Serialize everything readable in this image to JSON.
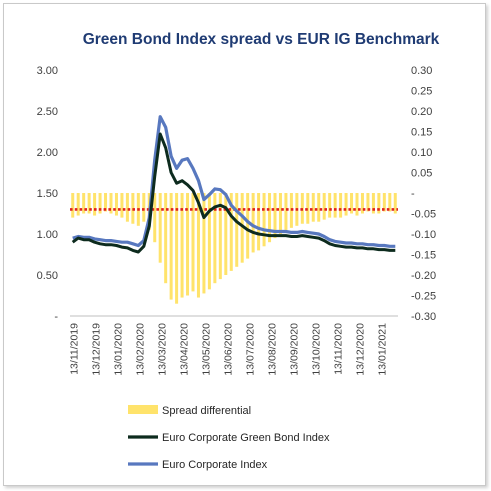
{
  "chart_data": {
    "type": "line",
    "title": "Green Bond Index spread vs EUR IG Benchmark",
    "y_left": {
      "lim": [
        0,
        3.0
      ],
      "ticks": [
        "-",
        "0.50",
        "1.00",
        "1.50",
        "2.00",
        "2.50",
        "3.00"
      ]
    },
    "y_right": {
      "lim": [
        -0.3,
        0.3
      ],
      "ticks": [
        "-0.30",
        "-0.25",
        "-0.20",
        "-0.15",
        "-0.10",
        "-0.05",
        "-",
        "0.05",
        "0.10",
        "0.15",
        "0.20",
        "0.25",
        "0.30"
      ]
    },
    "x_ticks": [
      "13/11/2019",
      "13/12/2019",
      "13/01/2020",
      "13/02/2020",
      "13/03/2020",
      "13/04/2020",
      "13/05/2020",
      "13/06/2020",
      "13/07/2020",
      "13/08/2020",
      "13/09/2020",
      "13/10/2020",
      "13/11/2020",
      "13/12/2020",
      "13/01/2021"
    ],
    "n_points": 60,
    "series": [
      {
        "name": "Spread differential",
        "kind": "bar",
        "axis": "right",
        "color": "#ffe36b",
        "values": [
          -0.06,
          -0.055,
          -0.05,
          -0.05,
          -0.055,
          -0.05,
          -0.045,
          -0.05,
          -0.055,
          -0.06,
          -0.07,
          -0.075,
          -0.08,
          -0.07,
          -0.09,
          -0.12,
          -0.17,
          -0.22,
          -0.26,
          -0.27,
          -0.255,
          -0.25,
          -0.24,
          -0.255,
          -0.245,
          -0.235,
          -0.22,
          -0.21,
          -0.2,
          -0.19,
          -0.18,
          -0.17,
          -0.16,
          -0.145,
          -0.14,
          -0.13,
          -0.12,
          -0.11,
          -0.1,
          -0.09,
          -0.085,
          -0.08,
          -0.075,
          -0.075,
          -0.07,
          -0.07,
          -0.065,
          -0.06,
          -0.06,
          -0.06,
          -0.055,
          -0.05,
          -0.055,
          -0.05,
          -0.045,
          -0.05,
          -0.05,
          -0.045,
          -0.045,
          -0.05
        ]
      },
      {
        "name": "Euro Corporate Green Bond Index",
        "kind": "line",
        "axis": "left",
        "color": "#0d2b1e",
        "values": [
          0.9,
          0.95,
          0.93,
          0.93,
          0.9,
          0.88,
          0.87,
          0.87,
          0.86,
          0.84,
          0.83,
          0.8,
          0.78,
          0.85,
          1.1,
          1.7,
          2.22,
          2.05,
          1.75,
          1.62,
          1.65,
          1.6,
          1.53,
          1.38,
          1.2,
          1.28,
          1.33,
          1.35,
          1.32,
          1.22,
          1.15,
          1.1,
          1.05,
          1.02,
          1.0,
          0.99,
          0.98,
          0.98,
          0.98,
          0.98,
          0.97,
          0.97,
          0.98,
          0.97,
          0.96,
          0.95,
          0.92,
          0.88,
          0.86,
          0.85,
          0.84,
          0.84,
          0.83,
          0.83,
          0.82,
          0.82,
          0.81,
          0.81,
          0.8,
          0.8
        ]
      },
      {
        "name": "Euro Corporate Index",
        "kind": "line",
        "axis": "left",
        "color": "#5878bf",
        "values": [
          0.95,
          0.97,
          0.96,
          0.96,
          0.94,
          0.93,
          0.92,
          0.92,
          0.91,
          0.9,
          0.9,
          0.88,
          0.86,
          0.92,
          1.2,
          1.9,
          2.43,
          2.3,
          1.95,
          1.8,
          1.9,
          1.92,
          1.8,
          1.65,
          1.42,
          1.48,
          1.55,
          1.54,
          1.48,
          1.35,
          1.28,
          1.22,
          1.15,
          1.1,
          1.07,
          1.05,
          1.04,
          1.03,
          1.03,
          1.03,
          1.02,
          1.02,
          1.03,
          1.02,
          1.01,
          1.0,
          0.97,
          0.93,
          0.91,
          0.9,
          0.89,
          0.89,
          0.88,
          0.88,
          0.87,
          0.87,
          0.86,
          0.86,
          0.85,
          0.85
        ]
      }
    ],
    "reference_line": {
      "axis": "right",
      "value": -0.04,
      "color": "#e0211b",
      "style": "dotted"
    },
    "legend_position": "bottom"
  }
}
